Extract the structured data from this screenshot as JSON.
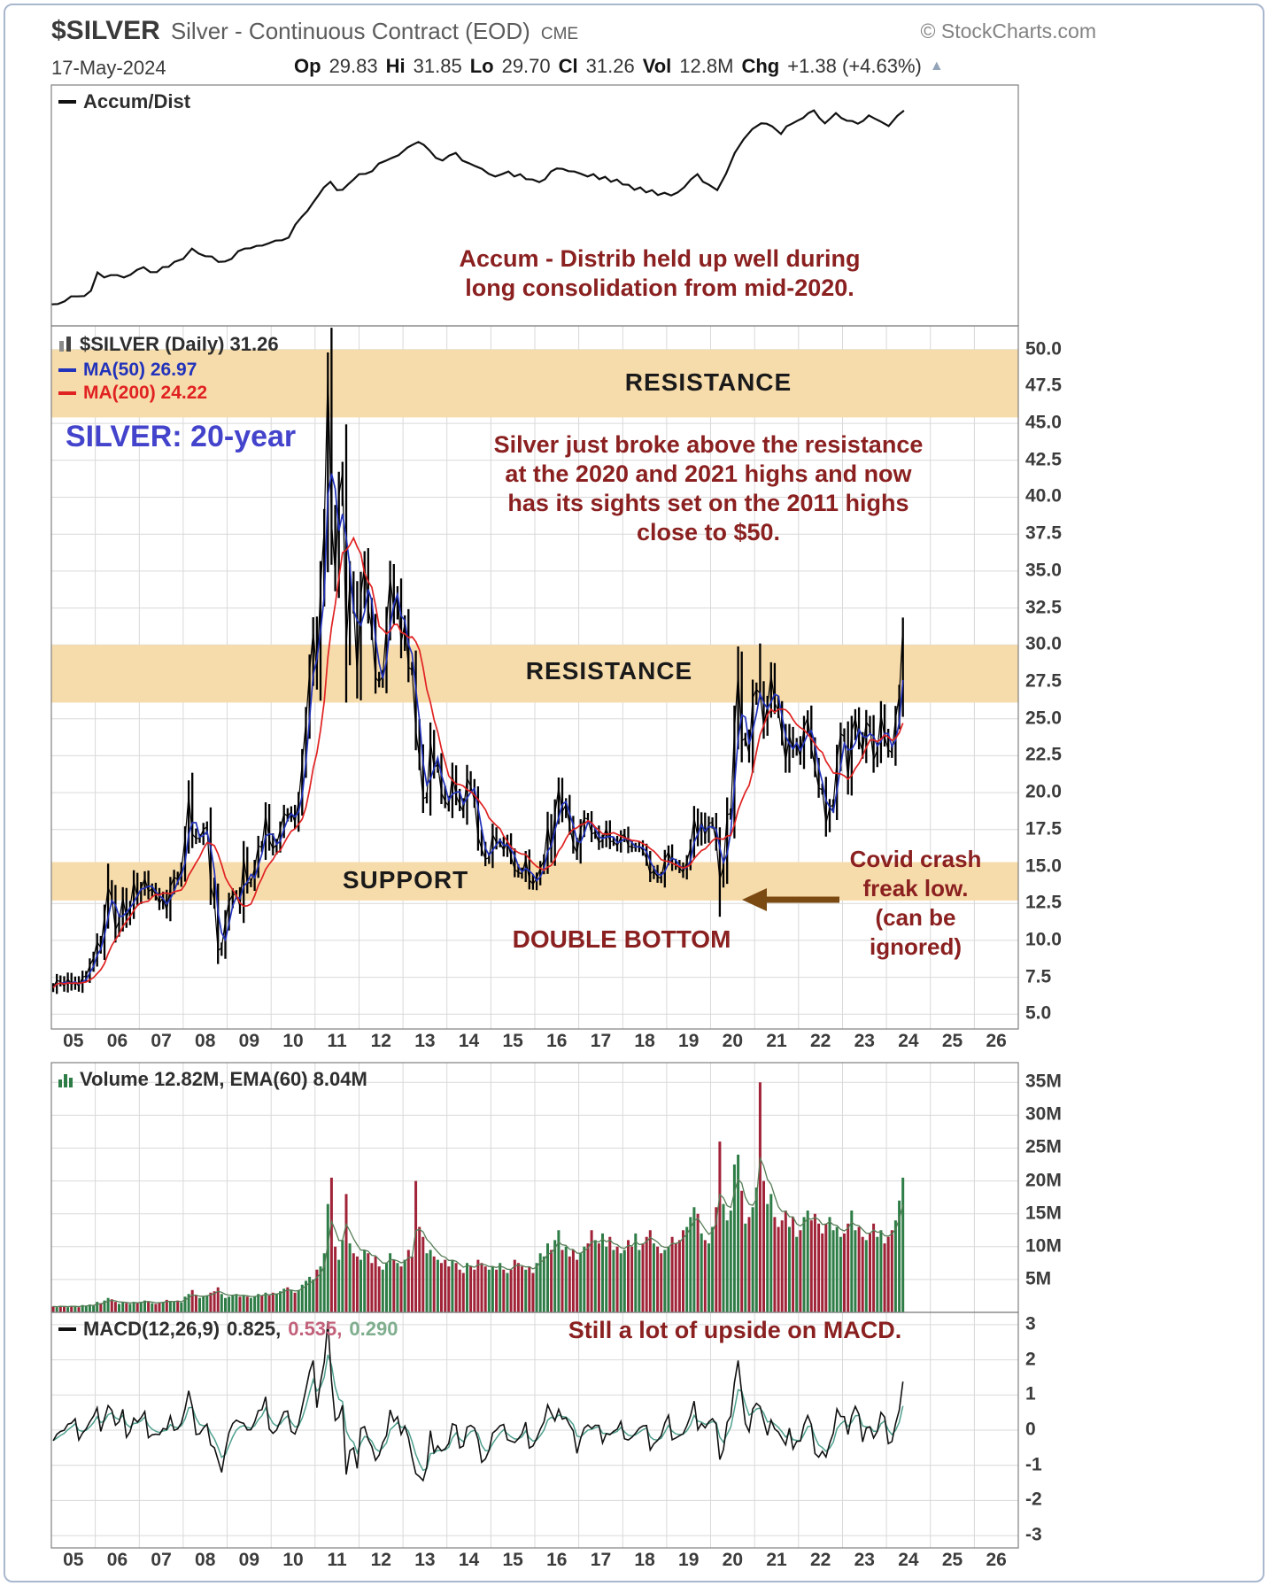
{
  "header": {
    "symbol": "$SILVER",
    "description": "Silver - Continuous Contract (EOD)",
    "exchange": "CME",
    "copyright": "© StockCharts.com",
    "date": "17-May-2024",
    "quote": {
      "op_label": "Op",
      "op": "29.83",
      "hi_label": "Hi",
      "hi": "31.85",
      "lo_label": "Lo",
      "lo": "29.70",
      "cl_label": "Cl",
      "cl": "31.26",
      "vol_label": "Vol",
      "vol": "12.8M",
      "chg_label": "Chg",
      "chg": "+1.38 (+4.63%)",
      "chg_direction": "up"
    }
  },
  "icons": {
    "up_arrow": "▲"
  },
  "colors": {
    "band": "#f7dcab",
    "price": "#000000",
    "ma50": "#2233bb",
    "ma200": "#e02222",
    "vol_up": "#2e7d46",
    "vol_down": "#a02338",
    "vol_ema": "#567d56",
    "macd_line": "#111111",
    "macd_signal": "#4fa08e",
    "macd_signal_text": "#c2607a",
    "macd_hist_text": "#7fae8e",
    "annotation_red": "#8b2020",
    "title_blue": "#4343cc",
    "arrow_brown": "#7b4a12",
    "grid": "#d9d9d9",
    "panel_border": "#808080"
  },
  "chart_data": [
    {
      "id": "accum_dist",
      "type": "line",
      "legend": "Accum/Dist",
      "annotation_lines": [
        "Accum - Distrib held up well during",
        "long consolidation from mid-2020."
      ],
      "x": [
        2005.0,
        2005.3,
        2005.6,
        2005.9,
        2006.05,
        2006.2,
        2006.5,
        2006.8,
        2007.1,
        2007.4,
        2007.8,
        2008.0,
        2008.2,
        2008.5,
        2008.8,
        2009.1,
        2009.4,
        2009.8,
        2010.1,
        2010.4,
        2010.7,
        2010.95,
        2011.2,
        2011.35,
        2011.5,
        2011.75,
        2012.0,
        2012.3,
        2012.6,
        2012.9,
        2013.1,
        2013.35,
        2013.6,
        2013.9,
        2014.2,
        2014.5,
        2014.8,
        2015.1,
        2015.4,
        2015.8,
        2016.1,
        2016.5,
        2016.9,
        2017.2,
        2017.6,
        2018.0,
        2018.4,
        2018.8,
        2019.1,
        2019.4,
        2019.7,
        2019.95,
        2020.15,
        2020.35,
        2020.55,
        2020.75,
        2020.95,
        2021.15,
        2021.4,
        2021.6,
        2021.85,
        2022.1,
        2022.35,
        2022.6,
        2022.85,
        2023.1,
        2023.35,
        2023.6,
        2023.85,
        2024.05,
        2024.25,
        2024.4
      ],
      "y": [
        5,
        8,
        9,
        12,
        20,
        19,
        18,
        20,
        22,
        21,
        24,
        27,
        31,
        28,
        25,
        27,
        31,
        33,
        34,
        37,
        45,
        52,
        58,
        62,
        57,
        61,
        64,
        67,
        71,
        74,
        77,
        80,
        75,
        72,
        74,
        70,
        67,
        64,
        66,
        63,
        61,
        68,
        66,
        65,
        63,
        61,
        58,
        56,
        55,
        60,
        64,
        61,
        57,
        66,
        74,
        82,
        85,
        89,
        86,
        84,
        88,
        91,
        93,
        89,
        92,
        90,
        88,
        92,
        89,
        87,
        91,
        94
      ]
    },
    {
      "id": "price",
      "type": "ohlc-bars",
      "legend": "$SILVER (Daily) 31.26",
      "legend_ma50": "MA(50) 26.97",
      "legend_ma200": "MA(200) 24.22",
      "title_label": "SILVER: 20-year",
      "interval": "monthly",
      "start": "2005-01",
      "end": "2024-05",
      "ylim": [
        4.0,
        51.6
      ],
      "yticks": [
        "50.0",
        "47.5",
        "45.0",
        "42.5",
        "40.0",
        "37.5",
        "35.0",
        "32.5",
        "30.0",
        "27.5",
        "25.0",
        "22.5",
        "20.0",
        "17.5",
        "15.0",
        "12.5",
        "10.0",
        "7.5",
        "5.0"
      ],
      "yticks_values": [
        50,
        47.5,
        45,
        42.5,
        40,
        37.5,
        35,
        32.5,
        30,
        27.5,
        25,
        22.5,
        20,
        17.5,
        15,
        12.5,
        10,
        7.5,
        5
      ],
      "xticks": [
        "05",
        "06",
        "07",
        "08",
        "09",
        "10",
        "11",
        "12",
        "13",
        "14",
        "15",
        "16",
        "17",
        "18",
        "19",
        "20",
        "21",
        "22",
        "23",
        "24",
        "25",
        "26"
      ],
      "bands": [
        {
          "from": 45.4,
          "to": 50.0,
          "label": "RESISTANCE"
        },
        {
          "from": 26.1,
          "to": 30.0,
          "label": "RESISTANCE"
        },
        {
          "from": 12.7,
          "to": 15.3,
          "label": "SUPPORT"
        }
      ],
      "annotations": {
        "breakout_lines": [
          "Silver just broke above the resistance",
          "at the 2020 and 2021 highs and now",
          "has its sights set on the 2011 highs",
          "close to  $50."
        ],
        "double_bottom": "DOUBLE BOTTOM",
        "covid_lines": [
          "Covid crash",
          "freak low.",
          "(can be",
          "ignored)"
        ]
      },
      "close": [
        6.8,
        7.3,
        7.2,
        6.9,
        7.4,
        7.0,
        7.2,
        6.9,
        7.5,
        7.6,
        8.3,
        8.8,
        9.9,
        9.5,
        11.6,
        13.6,
        12.9,
        10.7,
        11.3,
        12.9,
        11.5,
        12.2,
        14.0,
        12.9,
        13.5,
        14.2,
        13.3,
        13.5,
        13.1,
        12.5,
        12.9,
        12.0,
        13.6,
        14.3,
        14.1,
        14.8,
        16.9,
        19.8,
        17.2,
        16.9,
        16.9,
        17.5,
        17.7,
        13.7,
        12.7,
        9.3,
        9.5,
        11.3,
        12.6,
        13.1,
        13.1,
        12.3,
        15.6,
        13.9,
        13.9,
        14.9,
        16.4,
        16.3,
        18.5,
        16.8,
        16.2,
        16.5,
        17.5,
        18.6,
        18.4,
        18.7,
        18.0,
        19.4,
        22.0,
        24.8,
        28.2,
        30.9,
        28.0,
        33.9,
        37.9,
        48.6,
        38.3,
        34.8,
        40.1,
        41.7,
        30.0,
        34.3,
        32.8,
        27.9,
        33.3,
        35.5,
        32.5,
        31.0,
        27.8,
        27.5,
        27.9,
        31.4,
        34.6,
        32.3,
        33.4,
        30.2,
        31.4,
        28.5,
        28.3,
        24.2,
        22.3,
        19.6,
        19.7,
        23.5,
        21.7,
        21.9,
        20.0,
        19.4,
        19.1,
        21.2,
        19.8,
        19.2,
        18.7,
        21.0,
        20.4,
        19.5,
        17.0,
        16.2,
        15.5,
        15.6,
        17.2,
        16.6,
        16.6,
        16.1,
        16.7,
        15.7,
        14.8,
        14.6,
        14.5,
        15.5,
        14.1,
        13.8,
        14.2,
        14.9,
        15.4,
        17.8,
        16.0,
        18.6,
        20.3,
        18.7,
        19.2,
        17.8,
        16.5,
        15.9,
        17.5,
        18.3,
        18.2,
        17.2,
        17.3,
        16.6,
        16.8,
        17.6,
        16.7,
        16.7,
        16.4,
        17.0,
        17.2,
        16.4,
        16.3,
        16.3,
        16.4,
        16.1,
        15.5,
        14.5,
        14.7,
        14.3,
        14.2,
        15.5,
        16.0,
        15.2,
        15.1,
        14.9,
        14.6,
        15.3,
        16.3,
        18.3,
        17.0,
        18.1,
        17.1,
        17.9,
        18.0,
        16.7,
        14.1,
        15.0,
        18.5,
        18.6,
        24.2,
        28.1,
        23.5,
        23.7,
        22.6,
        26.4,
        27.0,
        26.7,
        24.5,
        25.9,
        28.0,
        26.1,
        25.5,
        23.9,
        22.1,
        23.9,
        22.9,
        23.3,
        22.4,
        24.4,
        25.1,
        23.1,
        21.7,
        20.3,
        20.2,
        17.9,
        19.0,
        19.2,
        22.2,
        24.0,
        23.8,
        20.9,
        24.1,
        25.1,
        23.6,
        22.8,
        24.8,
        24.4,
        22.2,
        22.9,
        25.3,
        23.8,
        22.9,
        22.7,
        25.0,
        26.6,
        31.26
      ],
      "high_overrides": {
        "15": 15.2,
        "38": 21.35,
        "75": 49.8,
        "187": 29.9,
        "193": 30.1,
        "232": 31.85
      },
      "low_overrides": {
        "45": 8.4,
        "80": 26.1,
        "182": 11.6
      }
    },
    {
      "id": "volume",
      "type": "bar",
      "legend": "Volume 12.82M, EMA(60) 8.04M",
      "unit": "M",
      "ylim": [
        0,
        38
      ],
      "yticks": [
        "35M",
        "30M",
        "25M",
        "20M",
        "15M",
        "10M",
        "5M"
      ],
      "yticks_values": [
        35,
        30,
        25,
        20,
        15,
        10,
        5
      ],
      "values": [
        0.9,
        0.8,
        1.0,
        0.9,
        0.8,
        1.0,
        0.9,
        0.8,
        1.1,
        1.0,
        1.2,
        1.1,
        1.6,
        1.4,
        1.8,
        2.2,
        2.0,
        1.6,
        1.3,
        1.5,
        1.4,
        1.3,
        1.6,
        1.4,
        1.6,
        1.8,
        1.7,
        1.4,
        1.3,
        1.5,
        1.6,
        1.9,
        1.7,
        1.6,
        1.8,
        1.5,
        2.4,
        2.8,
        3.4,
        2.6,
        2.2,
        2.4,
        2.6,
        3.0,
        3.2,
        3.8,
        2.8,
        2.2,
        2.4,
        2.6,
        2.8,
        2.4,
        2.6,
        2.4,
        2.2,
        2.4,
        2.8,
        2.6,
        3.0,
        2.6,
        3.0,
        2.8,
        3.2,
        3.6,
        3.8,
        3.4,
        3.0,
        3.4,
        4.2,
        4.8,
        5.4,
        5.0,
        6.5,
        7.0,
        9.0,
        16.5,
        20.5,
        10.0,
        8.0,
        11.0,
        18.0,
        10.5,
        9.0,
        8.5,
        8.0,
        9.5,
        9.0,
        7.5,
        8.5,
        7.0,
        6.5,
        7.5,
        9.0,
        8.0,
        7.5,
        7.0,
        8.0,
        9.5,
        8.5,
        20.0,
        13.0,
        11.5,
        9.0,
        9.5,
        8.5,
        8.0,
        7.5,
        8.0,
        7.0,
        8.0,
        7.5,
        6.5,
        6.0,
        7.5,
        7.0,
        6.5,
        8.0,
        7.5,
        7.0,
        6.5,
        7.0,
        6.5,
        7.5,
        6.5,
        6.0,
        6.5,
        8.0,
        7.5,
        7.0,
        6.5,
        7.0,
        6.0,
        7.5,
        9.0,
        8.5,
        10.5,
        9.5,
        11.0,
        12.5,
        9.5,
        10.0,
        8.5,
        9.5,
        8.0,
        9.0,
        10.0,
        10.5,
        12.5,
        11.0,
        10.5,
        12.0,
        10.0,
        11.5,
        9.5,
        10.0,
        9.0,
        9.5,
        11.0,
        10.0,
        12.0,
        9.5,
        10.5,
        11.5,
        12.5,
        10.5,
        10.0,
        9.0,
        9.5,
        10.0,
        11.5,
        10.5,
        11.0,
        12.5,
        13.0,
        14.5,
        16.0,
        15.0,
        12.0,
        11.0,
        10.5,
        13.0,
        16.0,
        26.0,
        16.5,
        14.0,
        15.5,
        22.5,
        24.0,
        18.5,
        13.5,
        14.5,
        16.0,
        19.0,
        35.0,
        20.0,
        16.5,
        18.0,
        14.5,
        13.0,
        14.0,
        15.5,
        13.0,
        14.5,
        11.5,
        12.5,
        14.5,
        15.5,
        14.0,
        15.0,
        13.5,
        12.0,
        13.5,
        14.5,
        12.5,
        13.0,
        11.5,
        12.0,
        13.5,
        15.5,
        12.5,
        13.0,
        11.5,
        11.0,
        12.0,
        13.5,
        11.5,
        12.5,
        10.5,
        11.5,
        12.5,
        14.0,
        17.0,
        20.5
      ]
    },
    {
      "id": "macd",
      "type": "line",
      "legend_name": "MACD(12,26,9)",
      "value_macd": "0.825,",
      "value_signal": "0.535,",
      "value_hist": "0.290",
      "annotation": "Still a lot of upside on MACD.",
      "derived_from": "price.close",
      "ylim": [
        -3.35,
        3.35
      ],
      "yticks": [
        "3",
        "2",
        "1",
        "0",
        "-1",
        "-2",
        "-3"
      ],
      "yticks_values": [
        3,
        2,
        1,
        0,
        -1,
        -2,
        -3
      ]
    }
  ]
}
